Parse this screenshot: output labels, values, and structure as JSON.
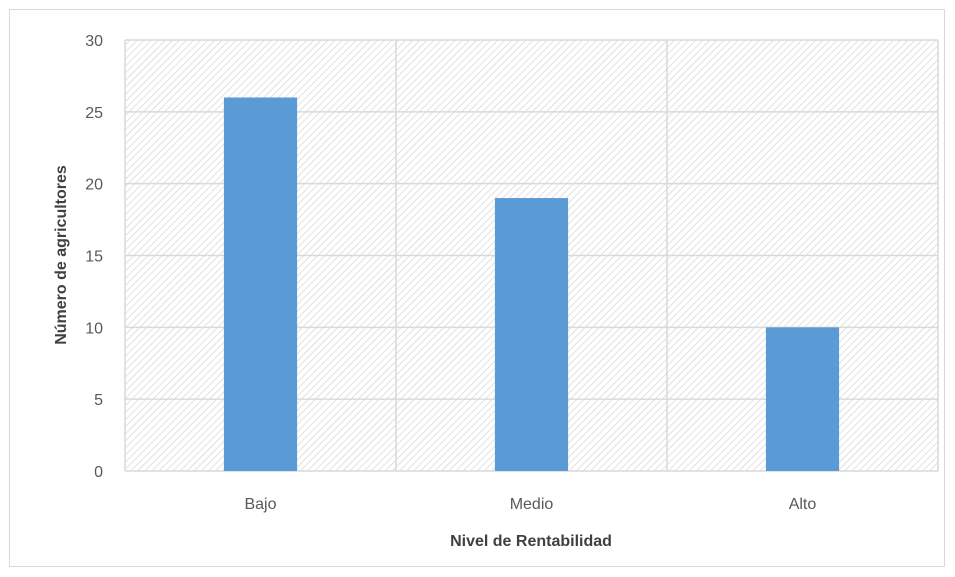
{
  "chart_data": {
    "type": "bar",
    "title": "",
    "xlabel": "Nivel de Rentabilidad",
    "ylabel": "Número de agricultores",
    "categories": [
      "Bajo",
      "Medio",
      "Alto"
    ],
    "values": [
      26,
      19,
      10
    ],
    "ylim": [
      0,
      30
    ],
    "yticks": [
      0,
      5,
      10,
      15,
      20,
      25,
      30
    ],
    "grid": true,
    "legend": "none",
    "bar_color": "#5b9bd5",
    "plot_background": "hatched"
  }
}
